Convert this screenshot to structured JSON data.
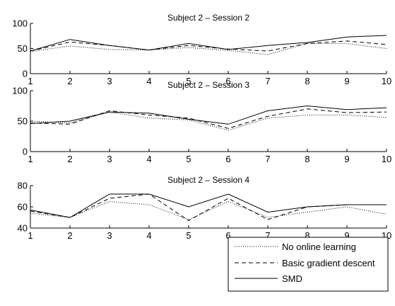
{
  "chart_data": [
    {
      "type": "line",
      "title": "Subject 2 – Session 2",
      "x": [
        1,
        2,
        3,
        4,
        5,
        6,
        7,
        8,
        9,
        10
      ],
      "xlim": [
        1,
        10
      ],
      "ylim": [
        0,
        100
      ],
      "yticks": [
        0,
        50,
        100
      ],
      "xtick_labels": [
        "1",
        "2",
        "3",
        "4",
        "5",
        "6",
        "7",
        "8",
        "9",
        "10"
      ],
      "ytick_labels": [
        "0",
        "50",
        "100"
      ],
      "series": [
        {
          "name": "No online learning",
          "values": [
            44,
            55,
            48,
            47,
            52,
            46,
            38,
            60,
            60,
            50
          ]
        },
        {
          "name": "Basic gradient descent",
          "values": [
            45,
            63,
            56,
            47,
            56,
            49,
            45,
            60,
            65,
            58
          ]
        },
        {
          "name": "SMD",
          "values": [
            45,
            68,
            56,
            47,
            60,
            48,
            56,
            62,
            73,
            76
          ]
        }
      ]
    },
    {
      "type": "line",
      "title": "Subject 2 – Session 3",
      "x": [
        1,
        2,
        3,
        4,
        5,
        6,
        7,
        8,
        9,
        10
      ],
      "xlim": [
        1,
        10
      ],
      "ylim": [
        0,
        100
      ],
      "yticks": [
        0,
        50,
        100
      ],
      "xtick_labels": [
        "1",
        "2",
        "3",
        "4",
        "5",
        "6",
        "7",
        "8",
        "9",
        "10"
      ],
      "ytick_labels": [
        "0",
        "50",
        "100"
      ],
      "series": [
        {
          "name": "No online learning",
          "values": [
            50,
            47,
            65,
            55,
            52,
            35,
            55,
            60,
            60,
            56
          ]
        },
        {
          "name": "Basic gradient descent",
          "values": [
            47,
            45,
            67,
            60,
            55,
            38,
            58,
            70,
            64,
            65
          ]
        },
        {
          "name": "SMD",
          "values": [
            46,
            50,
            65,
            63,
            53,
            45,
            67,
            75,
            69,
            72
          ]
        }
      ]
    },
    {
      "type": "line",
      "title": "Subject 2 – Session 4",
      "x": [
        1,
        2,
        3,
        4,
        5,
        6,
        7,
        8,
        9,
        10
      ],
      "xlim": [
        1,
        10
      ],
      "ylim": [
        40,
        80
      ],
      "yticks": [
        40,
        60,
        80
      ],
      "xtick_labels": [
        "1",
        "2",
        "3",
        "4",
        "5",
        "6",
        "7",
        "8",
        "9",
        "10"
      ],
      "ytick_labels": [
        "40",
        "60",
        "80"
      ],
      "series": [
        {
          "name": "No online learning",
          "values": [
            54,
            50,
            65,
            62,
            48,
            65,
            50,
            55,
            60,
            53
          ]
        },
        {
          "name": "Basic gradient descent",
          "values": [
            56,
            50,
            68,
            72,
            47,
            68,
            48,
            60,
            62,
            62
          ]
        },
        {
          "name": "SMD",
          "values": [
            57,
            50,
            72,
            72,
            60,
            72,
            55,
            60,
            62,
            62
          ]
        }
      ]
    }
  ],
  "legend": {
    "placement": "bottom-right",
    "items": [
      {
        "label": "No online learning",
        "style": "dotted"
      },
      {
        "label": "Basic gradient descent",
        "style": "dashed"
      },
      {
        "label": "SMD",
        "style": "solid"
      }
    ]
  }
}
